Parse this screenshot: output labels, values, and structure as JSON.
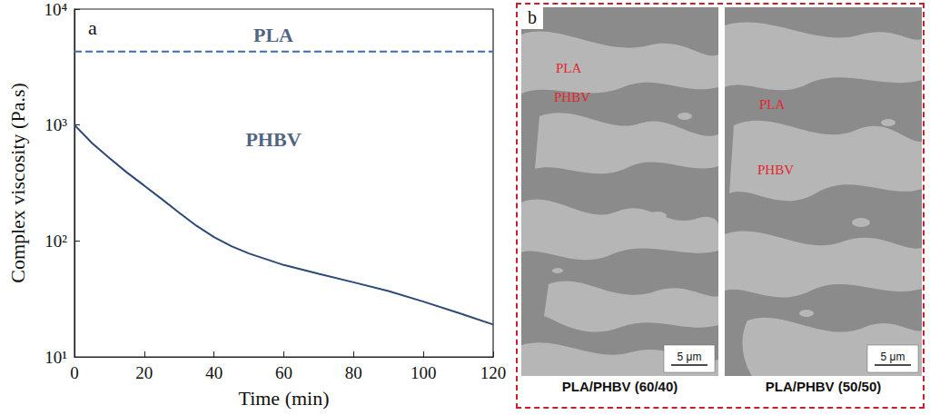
{
  "chart_data": {
    "type": "line",
    "title": "a",
    "x_label": "Time (min)",
    "y_label": "Complex viscosity (Pa.s)",
    "xlim": [
      0,
      120
    ],
    "xticks": [
      0,
      20,
      40,
      60,
      80,
      100,
      120
    ],
    "ylim": [
      10,
      10000
    ],
    "yticks": [
      {
        "value": 10,
        "label": "10¹"
      },
      {
        "value": 100,
        "label": "10²"
      },
      {
        "value": 1000,
        "label": "10³"
      },
      {
        "value": 10000,
        "label": "10⁴"
      }
    ],
    "log": "y",
    "grid": false,
    "series": [
      {
        "name": "PLA",
        "color": "#3d6ea8",
        "line_style": "dashed",
        "marker": "none",
        "x": [
          0,
          120
        ],
        "values": [
          4300,
          4300
        ]
      },
      {
        "name": "PHBV",
        "color": "#2b4a78",
        "line_style": "solid",
        "marker": "none",
        "x": [
          0,
          5,
          10,
          15,
          20,
          25,
          30,
          35,
          40,
          45,
          50,
          60,
          70,
          80,
          90,
          100,
          110,
          120
        ],
        "values": [
          1000,
          700,
          520,
          390,
          300,
          230,
          175,
          135,
          108,
          90,
          78,
          62,
          52,
          44,
          37,
          30,
          24,
          19
        ]
      }
    ],
    "annotations": [
      {
        "text": "PLA",
        "x": 57,
        "y": 6000
      },
      {
        "text": "PHBV",
        "x": 57,
        "y": 750
      }
    ]
  },
  "panel_b": {
    "panel": "b",
    "images": [
      {
        "caption": "PLA/PHBV (60/40)",
        "labels": [
          "PLA",
          "PHBV"
        ],
        "scale_bar": "5 μm"
      },
      {
        "caption": "PLA/PHBV (50/50)",
        "labels": [
          "PLA",
          "PHBV"
        ],
        "scale_bar": "5 μm"
      }
    ]
  }
}
